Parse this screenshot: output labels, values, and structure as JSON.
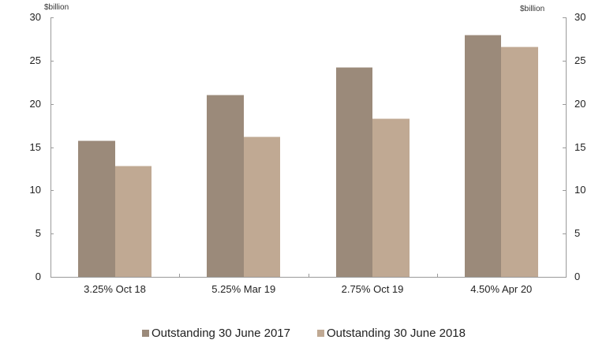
{
  "chart_data": {
    "type": "bar",
    "title": "",
    "xlabel": "",
    "ylabel": "$billion",
    "ylabel_right": "$billion",
    "ylim": [
      0,
      30
    ],
    "yticks": [
      0,
      5,
      10,
      15,
      20,
      25,
      30
    ],
    "grid": false,
    "legend_position": "bottom",
    "categories": [
      "3.25% Oct 18",
      "5.25% Mar 19",
      "2.75% Oct 19",
      "4.50% Apr 20"
    ],
    "series": [
      {
        "name": "Outstanding 30 June 2017",
        "color": "#9b8a7a",
        "values": [
          15.8,
          21.1,
          24.3,
          28.0
        ]
      },
      {
        "name": "Outstanding 30 June 2018",
        "color": "#c0a993",
        "values": [
          12.9,
          16.2,
          18.3,
          26.6
        ]
      }
    ]
  },
  "axes": {
    "left_unit": "$billion",
    "right_unit": "$billion",
    "ticks": [
      "0",
      "5",
      "10",
      "15",
      "20",
      "25",
      "30"
    ]
  },
  "legend": {
    "items": [
      {
        "label": "Outstanding 30 June 2017",
        "color": "#9b8a7a"
      },
      {
        "label": "Outstanding 30 June 2018",
        "color": "#c0a993"
      }
    ]
  }
}
